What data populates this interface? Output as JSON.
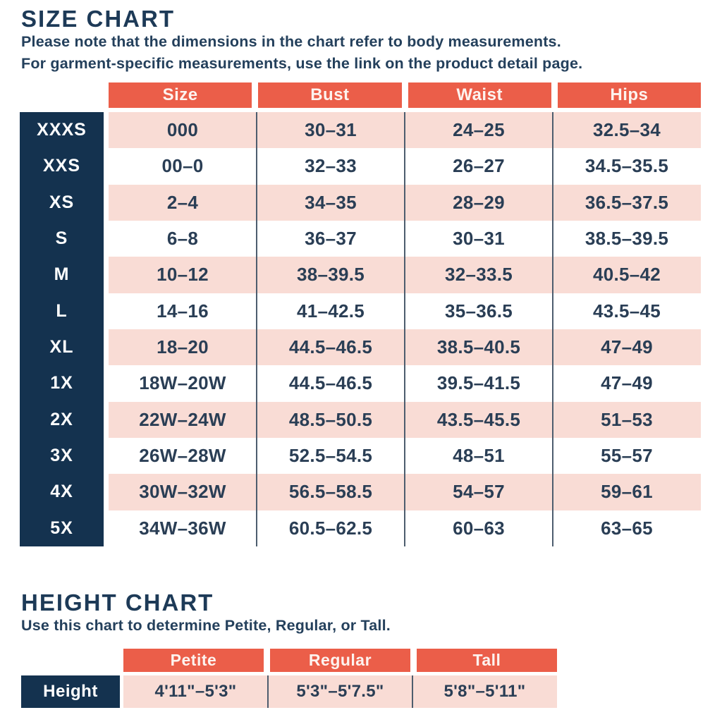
{
  "colors": {
    "coral_header": "#eb5e49",
    "pink_row": "#f9dcd5",
    "navy_block": "#14324f",
    "text_navy": "#24405c",
    "separator_line": "#4d5d6e"
  },
  "size_chart": {
    "title": "SIZE CHART",
    "subtitle_line1": "Please note that the dimensions in the chart refer to body measurements.",
    "subtitle_line2": "For garment-specific measurements, use the link on the product detail page.",
    "columns": [
      "Size",
      "Bust",
      "Waist",
      "Hips"
    ],
    "rows": [
      {
        "label": "XXXS",
        "values": [
          "000",
          "30–31",
          "24–25",
          "32.5–34"
        ]
      },
      {
        "label": "XXS",
        "values": [
          "00–0",
          "32–33",
          "26–27",
          "34.5–35.5"
        ]
      },
      {
        "label": "XS",
        "values": [
          "2–4",
          "34–35",
          "28–29",
          "36.5–37.5"
        ]
      },
      {
        "label": "S",
        "values": [
          "6–8",
          "36–37",
          "30–31",
          "38.5–39.5"
        ]
      },
      {
        "label": "M",
        "values": [
          "10–12",
          "38–39.5",
          "32–33.5",
          "40.5–42"
        ]
      },
      {
        "label": "L",
        "values": [
          "14–16",
          "41–42.5",
          "35–36.5",
          "43.5–45"
        ]
      },
      {
        "label": "XL",
        "values": [
          "18–20",
          "44.5–46.5",
          "38.5–40.5",
          "47–49"
        ]
      },
      {
        "label": "1X",
        "values": [
          "18W–20W",
          "44.5–46.5",
          "39.5–41.5",
          "47–49"
        ]
      },
      {
        "label": "2X",
        "values": [
          "22W–24W",
          "48.5–50.5",
          "43.5–45.5",
          "51–53"
        ]
      },
      {
        "label": "3X",
        "values": [
          "26W–28W",
          "52.5–54.5",
          "48–51",
          "55–57"
        ]
      },
      {
        "label": "4X",
        "values": [
          "30W–32W",
          "56.5–58.5",
          "54–57",
          "59–61"
        ]
      },
      {
        "label": "5X",
        "values": [
          "34W–36W",
          "60.5–62.5",
          "60–63",
          "63–65"
        ]
      }
    ]
  },
  "height_chart": {
    "title": "HEIGHT CHART",
    "subtitle": "Use this chart to determine Petite, Regular, or Tall.",
    "columns": [
      "Petite",
      "Regular",
      "Tall"
    ],
    "row_label": "Height",
    "values": [
      "4'11\"–5'3\"",
      "5'3\"–5'7.5\"",
      "5'8\"–5'11\""
    ]
  }
}
